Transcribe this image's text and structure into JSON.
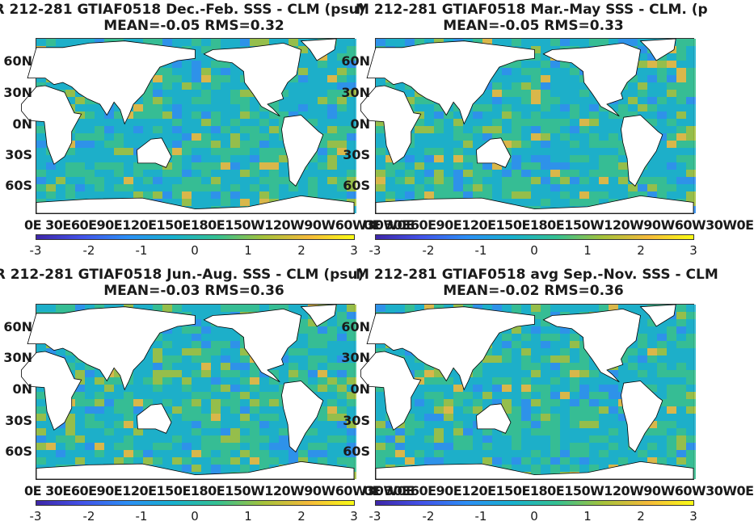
{
  "panels": [
    {
      "title": "R 212-281 GTIAF0518  Dec.-Feb. SSS - CLM (psu)",
      "stats": "MEAN=-0.05   RMS=0.32"
    },
    {
      "title": "M 212-281 GTIAF0518 Mar.-May SSS - CLM. (p",
      "stats": "MEAN=-0.05   RMS=0.33"
    },
    {
      "title": "R 212-281 GTIAF0518 Jun.-Aug. SSS - CLM (psu)",
      "stats": "MEAN=-0.03   RMS=0.36"
    },
    {
      "title": "M 212-281 GTIAF0518 avg Sep.-Nov. SSS - CLM",
      "stats": "MEAN=-0.02   RMS=0.36"
    }
  ],
  "lat_labels": [
    "60N",
    "30N",
    "0N",
    "30S",
    "60S"
  ],
  "lon_labels": "0E 30E60E90E120E150E180E150W120W90W60W30W0E",
  "colorbar_ticks": [
    "-3",
    "-2",
    "-1",
    "0",
    "1",
    "2",
    "3"
  ],
  "colors": {
    "ocean_base": "#3fa6a6",
    "land": "#ffffff",
    "colormap": [
      "#3e26a8",
      "#4352e8",
      "#2c8ef5",
      "#17b0cf",
      "#35c191",
      "#a5c23b",
      "#f5ba3a",
      "#f9fb15"
    ]
  },
  "chart_data": [
    {
      "type": "heatmap",
      "title": "R 212-281 GTIAF0518  Dec.-Feb. SSS - CLM (psu)",
      "subtitle": "MEAN=-0.05   RMS=0.32",
      "x": [
        "0E",
        "30E",
        "60E",
        "90E",
        "120E",
        "150E",
        "180E",
        "150W",
        "120W",
        "90W",
        "60W",
        "30W",
        "0E"
      ],
      "y": [
        "60N",
        "30N",
        "0N",
        "30S",
        "60S"
      ],
      "colorbar": {
        "min": -3,
        "max": 3,
        "ticks": [
          -3,
          -2,
          -1,
          0,
          1,
          2,
          3
        ]
      },
      "mean": -0.05,
      "rms": 0.32
    },
    {
      "type": "heatmap",
      "title": "M 212-281 GTIAF0518 Mar.-May SSS - CLM. (p",
      "subtitle": "MEAN=-0.05   RMS=0.33",
      "x": [
        "0E",
        "30E",
        "60E",
        "90E",
        "120E",
        "150E",
        "180E",
        "150W",
        "120W",
        "90W",
        "60W",
        "30W",
        "0E"
      ],
      "y": [
        "60N",
        "30N",
        "0N",
        "30S",
        "60S"
      ],
      "colorbar": {
        "min": -3,
        "max": 3,
        "ticks": [
          -3,
          -2,
          -1,
          0,
          1,
          2,
          3
        ]
      },
      "mean": -0.05,
      "rms": 0.33
    },
    {
      "type": "heatmap",
      "title": "R 212-281 GTIAF0518 Jun.-Aug. SSS - CLM (psu)",
      "subtitle": "MEAN=-0.03   RMS=0.36",
      "x": [
        "0E",
        "30E",
        "60E",
        "90E",
        "120E",
        "150E",
        "180E",
        "150W",
        "120W",
        "90W",
        "60W",
        "30W",
        "0E"
      ],
      "y": [
        "60N",
        "30N",
        "0N",
        "30S",
        "60S"
      ],
      "colorbar": {
        "min": -3,
        "max": 3,
        "ticks": [
          -3,
          -2,
          -1,
          0,
          1,
          2,
          3
        ]
      },
      "mean": -0.03,
      "rms": 0.36
    },
    {
      "type": "heatmap",
      "title": "M 212-281 GTIAF0518 avg Sep.-Nov. SSS - CLM",
      "subtitle": "MEAN=-0.02   RMS=0.36",
      "x": [
        "0E",
        "30E",
        "60E",
        "90E",
        "120E",
        "150E",
        "180E",
        "150W",
        "120W",
        "90W",
        "60W",
        "30W",
        "0E"
      ],
      "y": [
        "60N",
        "30N",
        "0N",
        "30S",
        "60S"
      ],
      "colorbar": {
        "min": -3,
        "max": 3,
        "ticks": [
          -3,
          -2,
          -1,
          0,
          1,
          2,
          3
        ]
      },
      "mean": -0.02,
      "rms": 0.36
    }
  ]
}
